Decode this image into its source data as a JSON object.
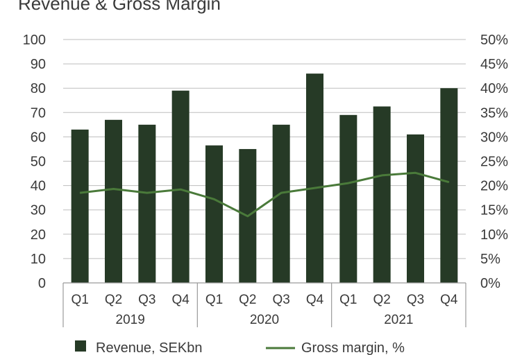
{
  "chart_data": {
    "type": "bar",
    "title": "Revenue & Gross Margin",
    "categories": [
      "Q1",
      "Q2",
      "Q3",
      "Q4",
      "Q1",
      "Q2",
      "Q3",
      "Q4",
      "Q1",
      "Q2",
      "Q3",
      "Q4"
    ],
    "groups": [
      {
        "label": "2019",
        "count": 4
      },
      {
        "label": "2020",
        "count": 4
      },
      {
        "label": "2021",
        "count": 4
      }
    ],
    "series": [
      {
        "name": "Revenue, SEKbn",
        "type": "bar",
        "axis": "left",
        "color": "#263a26",
        "values": [
          63,
          67,
          65,
          79,
          56.5,
          55,
          65,
          86,
          69,
          72.5,
          61,
          80
        ]
      },
      {
        "name": "Gross margin, %",
        "type": "line",
        "axis": "right",
        "color": "#4a7a3a",
        "values": [
          18.5,
          19.3,
          18.5,
          19.2,
          17.2,
          13.7,
          18.5,
          19.5,
          20.5,
          22.1,
          22.6,
          20.7
        ]
      }
    ],
    "y_left": {
      "min": 0,
      "max": 100,
      "ticks": [
        "0",
        "10",
        "20",
        "30",
        "40",
        "50",
        "60",
        "70",
        "80",
        "90",
        "100"
      ]
    },
    "y_right": {
      "min": 0,
      "max": 50,
      "ticks": [
        "0%",
        "5%",
        "10%",
        "15%",
        "20%",
        "25%",
        "30%",
        "35%",
        "40%",
        "45%",
        "50%"
      ]
    },
    "grid": true,
    "legend_position": "bottom"
  }
}
